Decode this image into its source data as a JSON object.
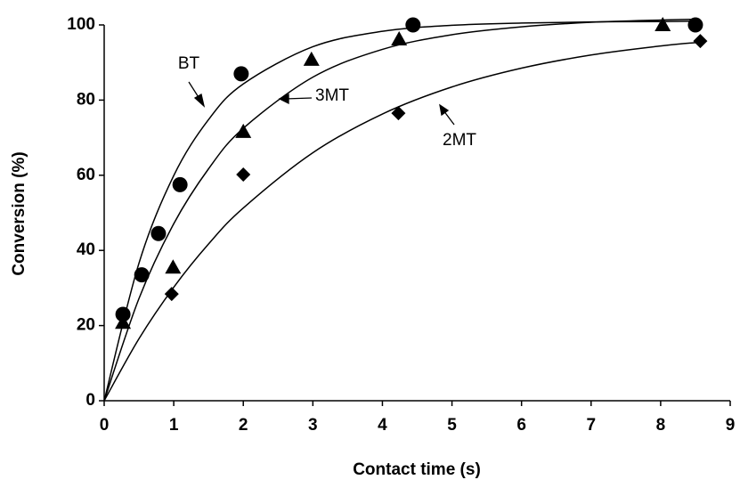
{
  "chart_data": {
    "type": "scatter",
    "x_label": "Contact time (s)",
    "y_label": "Conversion (%)",
    "xlim": [
      0,
      9
    ],
    "ylim": [
      0,
      100
    ],
    "xticks": [
      0,
      1,
      2,
      3,
      4,
      5,
      6,
      7,
      8,
      9
    ],
    "yticks": [
      0,
      20,
      40,
      60,
      80,
      100
    ],
    "color": "#000000",
    "series": [
      {
        "name": "BT",
        "marker": "circle",
        "x": [
          0.27,
          0.54,
          0.78,
          1.09,
          1.97,
          4.44,
          8.5
        ],
        "values": [
          23,
          33.5,
          44.5,
          57.5,
          87,
          100,
          100
        ]
      },
      {
        "name": "3MT",
        "marker": "triangle",
        "x": [
          0.27,
          0.99,
          2.0,
          2.98,
          4.24,
          8.03
        ],
        "values": [
          20.8,
          35.5,
          71.6,
          90.8,
          96.2,
          100
        ]
      },
      {
        "name": "2MT",
        "marker": "diamond",
        "x": [
          0.97,
          2.0,
          4.23,
          8.57
        ],
        "values": [
          28.4,
          60.2,
          76.5,
          95.7
        ]
      }
    ],
    "curves": [
      {
        "x": [
          0,
          0.5,
          1,
          1.5,
          2,
          3,
          4,
          5,
          6,
          7,
          8,
          8.5
        ],
        "values": [
          0,
          36.6,
          59.9,
          74.8,
          84.3,
          94.2,
          98.3,
          99.9,
          100.5,
          100.8,
          100.9,
          101
        ]
      },
      {
        "x": [
          0,
          0.5,
          1,
          1.5,
          2,
          3,
          4,
          5,
          6,
          7,
          8,
          8.5
        ],
        "values": [
          0,
          27.2,
          47.1,
          61.7,
          72.5,
          86.1,
          93.5,
          97.4,
          99.5,
          100.7,
          101.3,
          101.5
        ]
      },
      {
        "x": [
          0,
          0.5,
          1,
          1.5,
          2,
          3,
          4,
          5,
          6,
          7,
          8,
          8.5
        ],
        "values": [
          0,
          16.5,
          30.2,
          41.7,
          51.3,
          66.0,
          76.3,
          83.5,
          88.5,
          92.0,
          94.4,
          95.3
        ]
      }
    ]
  }
}
